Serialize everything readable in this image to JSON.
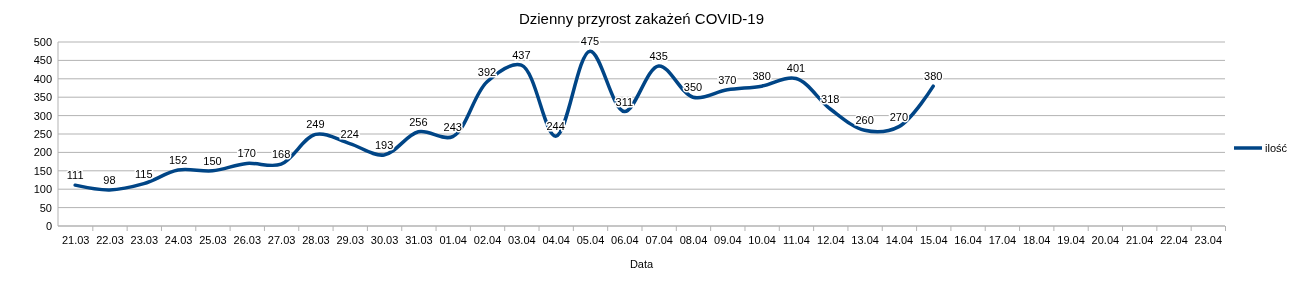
{
  "chart_data": {
    "type": "line",
    "title": "Dzienny przyrost zakażeń COVID-19",
    "xlabel": "Data",
    "categories": [
      "21.03",
      "22.03",
      "23.03",
      "24.03",
      "25.03",
      "26.03",
      "27.03",
      "28.03",
      "29.03",
      "30.03",
      "31.03",
      "01.04",
      "02.04",
      "03.04",
      "04.04",
      "05.04",
      "06.04",
      "07.04",
      "08.04",
      "09.04",
      "10.04",
      "11.04",
      "12.04",
      "13.04",
      "14.04",
      "15.04",
      "16.04",
      "17.04",
      "18.04",
      "19.04",
      "20.04",
      "21.04",
      "22.04",
      "23.04"
    ],
    "series": [
      {
        "name": "ilość",
        "color": "#004586",
        "values": [
          111,
          98,
          115,
          152,
          150,
          170,
          168,
          249,
          224,
          193,
          256,
          243,
          392,
          437,
          244,
          475,
          311,
          435,
          350,
          370,
          380,
          401,
          318,
          260,
          270,
          380,
          null,
          null,
          null,
          null,
          null,
          null,
          null,
          null
        ]
      }
    ],
    "ylim": [
      0,
      500
    ],
    "yticks": [
      0,
      50,
      100,
      150,
      200,
      250,
      300,
      350,
      400,
      450,
      500
    ],
    "grid": "y",
    "legend": "right",
    "data_labels": true,
    "marker": "none",
    "line_style": "solid"
  }
}
